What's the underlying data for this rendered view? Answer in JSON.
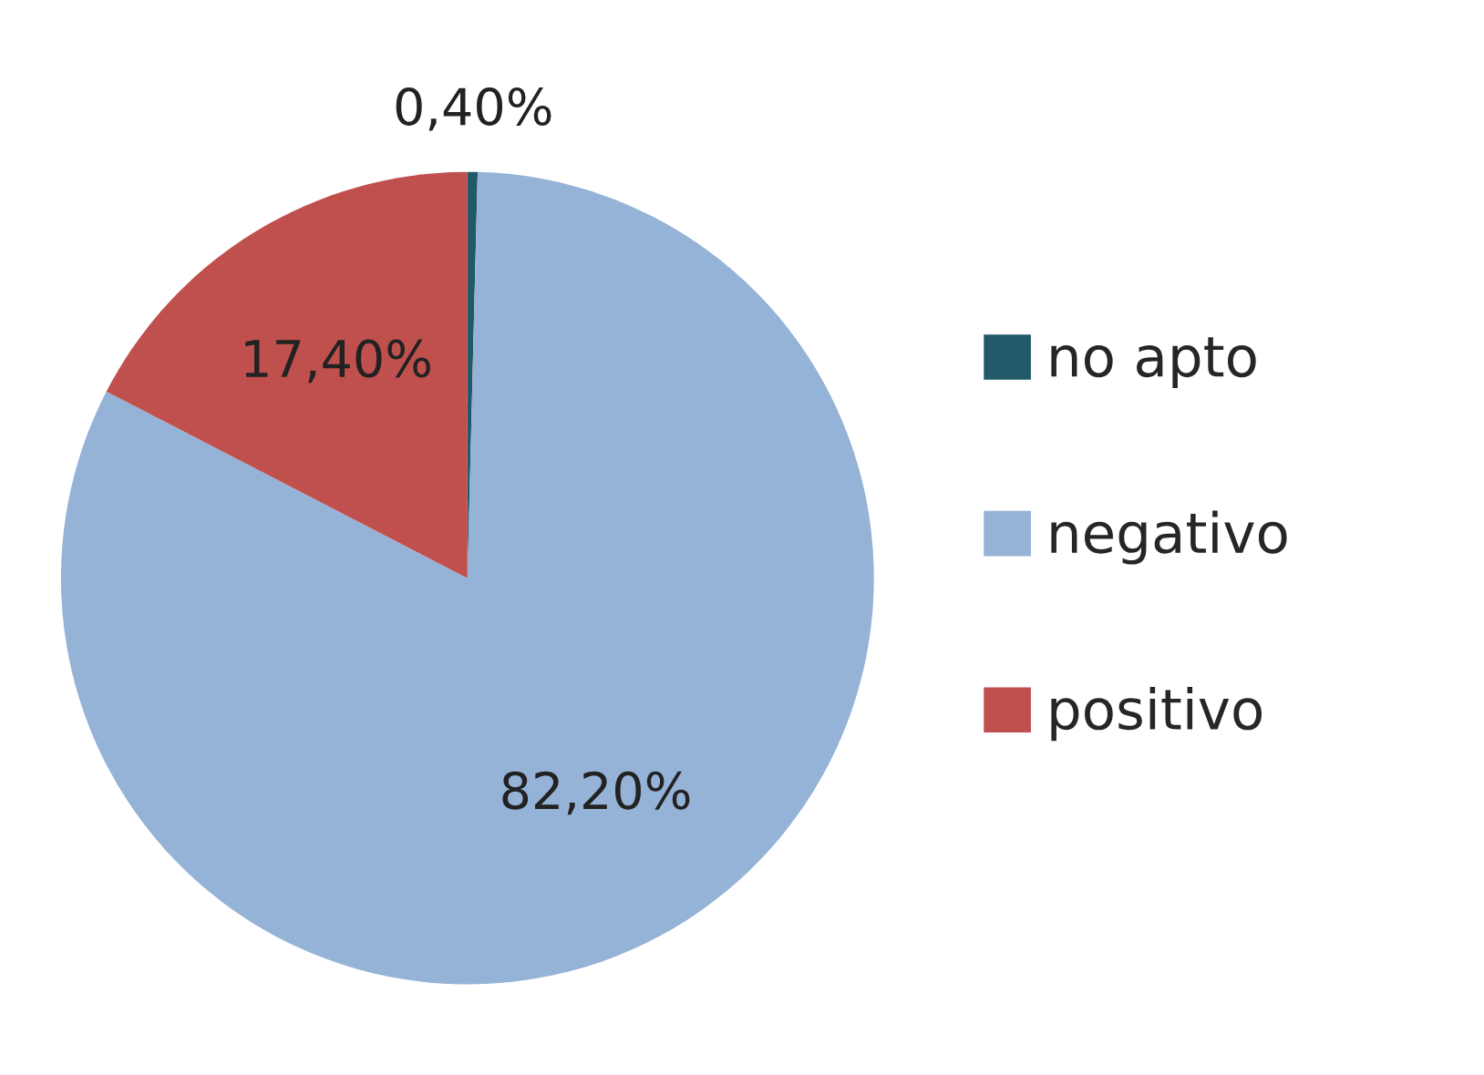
{
  "chart_data": {
    "type": "pie",
    "categories": [
      "no apto",
      "negativo",
      "positivo"
    ],
    "values": [
      0.4,
      82.2,
      17.4
    ],
    "value_labels": [
      "0,40%",
      "82,20%",
      "17,40%"
    ],
    "colors": [
      "#215968",
      "#95b3d7",
      "#c0504d"
    ],
    "legend": "right"
  }
}
